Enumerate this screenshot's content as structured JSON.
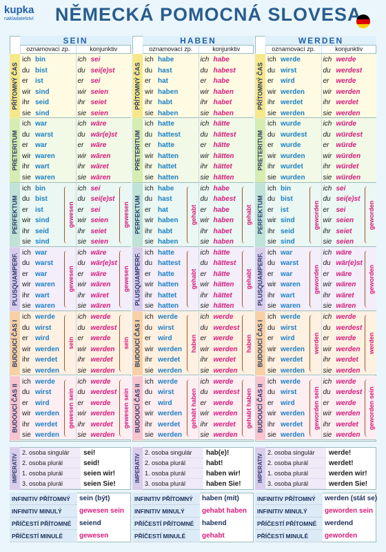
{
  "header": {
    "logo": "kupka",
    "publisher": "nakladatelství",
    "title": "NĚMECKÁ POMOCNÁ SLOVESA"
  },
  "moods": [
    "oznamovací zp.",
    "konjunktiv"
  ],
  "pronouns": [
    "ich",
    "du",
    "er",
    "wir",
    "ihr",
    "sie"
  ],
  "tenses": [
    "PŘÍTOMNÝ ČAS",
    "PRETERITUM",
    "PERFEKTUM",
    "PLUSQUAMPERF.",
    "BUDOUCÍ ČAS I",
    "BUDOUCÍ ČAS II"
  ],
  "imperative_label": "IMPERATIV",
  "imperative_persons": [
    "2. osoba singulár",
    "2. osoba plurál",
    "1. osoba plurál",
    "3. osoba plurál"
  ],
  "infinitive_labels": [
    "INFINITIV PŘÍTOMNÝ",
    "INFINITIV MINULÝ",
    "PŘÍČESTÍ PŘÍTOMNÉ",
    "PŘÍČESTÍ MINULÉ"
  ],
  "verbs": [
    {
      "name": "SEIN",
      "tenses": [
        {
          "indicative": [
            "bin",
            "bist",
            "ist",
            "sind",
            "seid",
            "sind"
          ],
          "konjunktiv": [
            "sei",
            "sei(e)st",
            "sei",
            "seien",
            "seiet",
            "seien"
          ]
        },
        {
          "indicative": [
            "war",
            "warst",
            "war",
            "waren",
            "wart",
            "waren"
          ],
          "konjunktiv": [
            "wäre",
            "wär(e)st",
            "wäre",
            "wären",
            "wäret",
            "wären"
          ]
        },
        {
          "indicative": [
            "bin",
            "bist",
            "ist",
            "sind",
            "seid",
            "sind"
          ],
          "konjunktiv": [
            "sei",
            "sei(e)st",
            "sei",
            "seien",
            "seiet",
            "seien"
          ],
          "participle": "gewesen"
        },
        {
          "indicative": [
            "war",
            "warst",
            "war",
            "waren",
            "wart",
            "waren"
          ],
          "konjunktiv": [
            "wäre",
            "wär(e)st",
            "wäre",
            "wären",
            "wäret",
            "wären"
          ],
          "participle": "gewesen"
        },
        {
          "indicative": [
            "werde",
            "wirst",
            "wird",
            "werden",
            "werdet",
            "werden"
          ],
          "konjunktiv": [
            "werde",
            "werdest",
            "werde",
            "werden",
            "werdet",
            "werden"
          ],
          "participle": "sein"
        },
        {
          "indicative": [
            "werde",
            "wirst",
            "wird",
            "werden",
            "werdet",
            "werden"
          ],
          "konjunktiv": [
            "werde",
            "werdest",
            "werde",
            "werden",
            "werdet",
            "werden"
          ],
          "participle": "gewesen sein"
        }
      ],
      "imperative": [
        "sei!",
        "seid!",
        "seien wir!",
        "seien Sie!"
      ],
      "infinitives": [
        "sein (být)",
        "gewesen sein",
        "seiend",
        "gewesen"
      ]
    },
    {
      "name": "HABEN",
      "tenses": [
        {
          "indicative": [
            "habe",
            "hast",
            "hat",
            "haben",
            "habt",
            "haben"
          ],
          "konjunktiv": [
            "habe",
            "habest",
            "habe",
            "haben",
            "habet",
            "haben"
          ]
        },
        {
          "indicative": [
            "hatte",
            "hattest",
            "hatte",
            "hatten",
            "hattet",
            "hatten"
          ],
          "konjunktiv": [
            "hätte",
            "hättest",
            "hätte",
            "hätten",
            "hättet",
            "hätten"
          ]
        },
        {
          "indicative": [
            "habe",
            "hast",
            "hat",
            "haben",
            "habt",
            "haben"
          ],
          "konjunktiv": [
            "habe",
            "habest",
            "habe",
            "haben",
            "habet",
            "haben"
          ],
          "participle": "gehabt"
        },
        {
          "indicative": [
            "hatte",
            "hattest",
            "hatte",
            "hatten",
            "hattet",
            "hatten"
          ],
          "konjunktiv": [
            "hätte",
            "hättest",
            "hätte",
            "hätten",
            "hättet",
            "hätten"
          ],
          "participle": "gehabt"
        },
        {
          "indicative": [
            "werde",
            "wirst",
            "wird",
            "werden",
            "werdet",
            "werden"
          ],
          "konjunktiv": [
            "werde",
            "werdest",
            "werde",
            "werden",
            "werdet",
            "werden"
          ],
          "participle": "haben"
        },
        {
          "indicative": [
            "werde",
            "wirst",
            "wird",
            "werden",
            "werdet",
            "werden"
          ],
          "konjunktiv": [
            "werde",
            "werdest",
            "werde",
            "werden",
            "werdet",
            "werden"
          ],
          "participle": "gehabt haben"
        }
      ],
      "imperative": [
        "hab(e)!",
        "habt!",
        "haben wir!",
        "haben Sie!"
      ],
      "infinitives": [
        "haben (mít)",
        "gehabt haben",
        "habend",
        "gehabt"
      ]
    },
    {
      "name": "WERDEN",
      "tenses": [
        {
          "indicative": [
            "werde",
            "wirst",
            "wird",
            "werden",
            "werdet",
            "werden"
          ],
          "konjunktiv": [
            "werde",
            "werdest",
            "werde",
            "werden",
            "werdet",
            "werden"
          ]
        },
        {
          "indicative": [
            "wurde",
            "wurdest",
            "wurde",
            "wurden",
            "wurdet",
            "wurden"
          ],
          "konjunktiv": [
            "würde",
            "würdest",
            "würde",
            "würden",
            "würdet",
            "würden"
          ]
        },
        {
          "indicative": [
            "bin",
            "bist",
            "ist",
            "sind",
            "seid",
            "sind"
          ],
          "konjunktiv": [
            "sei",
            "sei(e)st",
            "sei",
            "seien",
            "seiet",
            "seien"
          ],
          "participle": "geworden"
        },
        {
          "indicative": [
            "war",
            "warst",
            "war",
            "waren",
            "wart",
            "waren"
          ],
          "konjunktiv": [
            "wäre",
            "wär(e)st",
            "wäre",
            "wären",
            "wäret",
            "wären"
          ],
          "participle": "geworden"
        },
        {
          "indicative": [
            "werde",
            "wirst",
            "wird",
            "werden",
            "werdet",
            "werden"
          ],
          "konjunktiv": [
            "werde",
            "werdest",
            "werde",
            "werden",
            "werdet",
            "werden"
          ],
          "participle": "werden"
        },
        {
          "indicative": [
            "werde",
            "wirst",
            "wird",
            "werden",
            "werdet",
            "werden"
          ],
          "konjunktiv": [
            "werde",
            "werdest",
            "werde",
            "werden",
            "werdet",
            "werden"
          ],
          "participle": "geworden sein"
        }
      ],
      "imperative": [
        "werde!",
        "werdet!",
        "werden wir!",
        "werden Sie!"
      ],
      "infinitives": [
        "werden (stát se)",
        "geworden sein",
        "werdend",
        "geworden"
      ]
    }
  ]
}
